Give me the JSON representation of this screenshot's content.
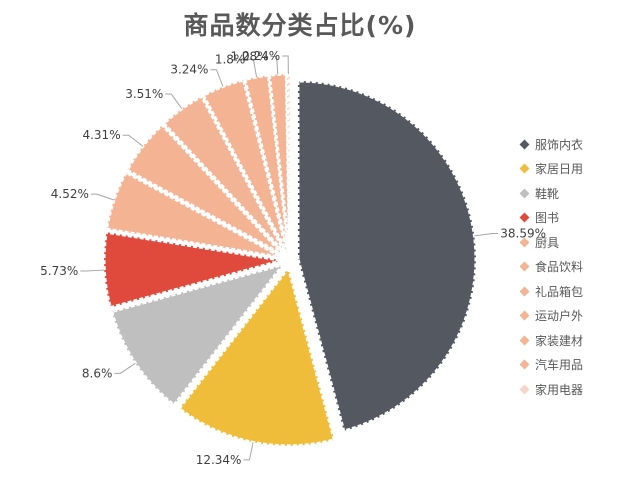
{
  "chart_data": {
    "type": "pie",
    "title": "商品数分类占比(%)",
    "legend_position": "right",
    "slices": [
      {
        "name": "服饰内衣",
        "value": 38.59,
        "label": "38.59%",
        "color": "#535861"
      },
      {
        "name": "家居日用",
        "value": 12.34,
        "label": "12.34%",
        "color": "#f0bd3a"
      },
      {
        "name": "鞋靴",
        "value": 8.6,
        "label": "8.6%",
        "color": "#bfbfbf"
      },
      {
        "name": "图书",
        "value": 5.73,
        "label": "5.73%",
        "color": "#e04a3c"
      },
      {
        "name": "厨具",
        "value": 4.52,
        "label": "4.52%",
        "color": "#f4b393"
      },
      {
        "name": "食品饮料",
        "value": 4.31,
        "label": "4.31%",
        "color": "#f4b393"
      },
      {
        "name": "礼品箱包",
        "value": 3.51,
        "label": "3.51%",
        "color": "#f3b496"
      },
      {
        "name": "运动户外",
        "value": 3.24,
        "label": "3.24%",
        "color": "#f4b393"
      },
      {
        "name": "家装建材",
        "value": 1.8,
        "label": "1.8%",
        "color": "#f4b393"
      },
      {
        "name": "汽车用品",
        "value": 1.28,
        "label": "1.28%",
        "color": "#f4b393"
      },
      {
        "name": "家用电器",
        "value": 0.24,
        "label": "0.24%",
        "color": "#f6d5c6"
      }
    ]
  }
}
